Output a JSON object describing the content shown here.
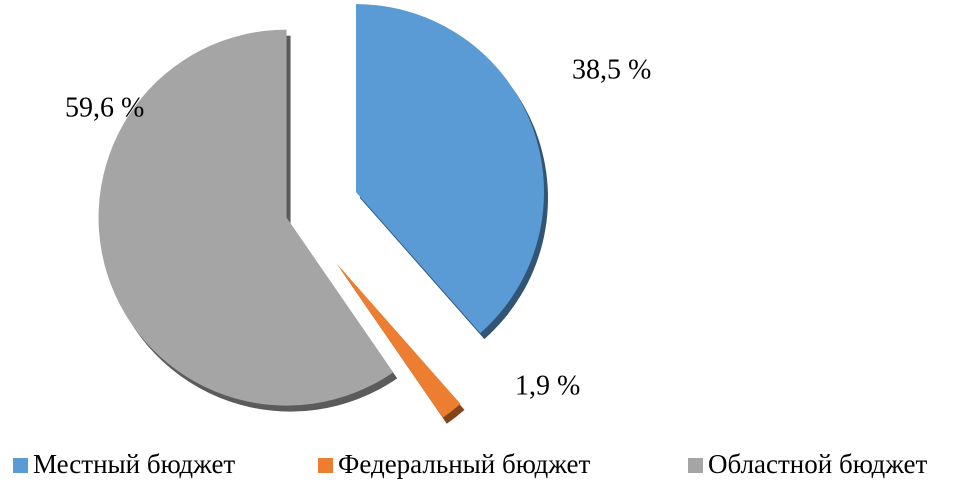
{
  "chart_data": {
    "type": "pie",
    "categories": [
      "Местный бюджет",
      "Федеральный бюджет",
      "Областной бюджет"
    ],
    "values": [
      38.5,
      1.9,
      59.6
    ],
    "value_labels": [
      "38,5 %",
      "1,9 %",
      "59,6 %"
    ],
    "colors": [
      "#5b9bd5",
      "#ed7d31",
      "#a5a5a5"
    ],
    "legend": "bottom"
  }
}
